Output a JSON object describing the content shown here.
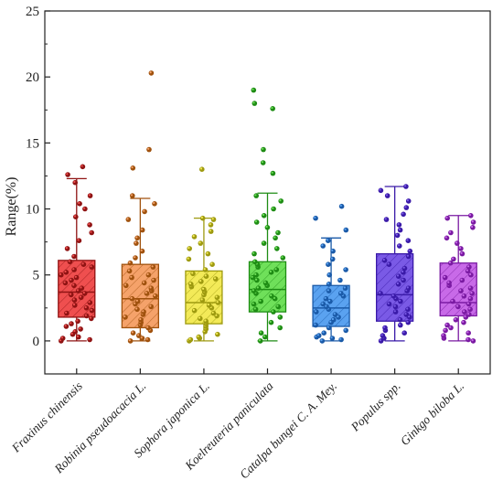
{
  "chart_data": {
    "type": "box",
    "ylabel": "Range(%)",
    "xlabel": "",
    "ylim": [
      -2.5,
      25
    ],
    "yticks": [
      0,
      5,
      10,
      15,
      20,
      25
    ],
    "grid": false,
    "categories": [
      {
        "name": "Fraxinus chinensis",
        "color": "#ef4f4f",
        "dark": "#8f1313",
        "min": 0,
        "q1": 1.8,
        "median": 3.7,
        "q3": 6.1,
        "max": 12.3,
        "points": [
          0.0,
          0.1,
          0.2,
          0.3,
          0.5,
          0.7,
          0.9,
          1.1,
          1.3,
          1.5,
          1.7,
          1.9,
          2.1,
          2.3,
          2.5,
          2.7,
          2.9,
          3.1,
          3.3,
          3.5,
          3.6,
          3.8,
          4.0,
          4.2,
          4.4,
          4.6,
          4.8,
          5.0,
          5.2,
          5.4,
          5.6,
          5.8,
          6.0,
          6.4,
          7.0,
          7.6,
          8.2,
          8.8,
          9.4,
          10.0,
          10.4,
          11.0,
          12.0,
          12.6,
          13.2
        ]
      },
      {
        "name": "Robinia pseudoacacia L.",
        "color": "#f5a26a",
        "dark": "#a0520e",
        "min": 0,
        "q1": 1.0,
        "median": 3.2,
        "q3": 5.8,
        "max": 10.8,
        "points": [
          0.0,
          0.1,
          0.2,
          0.4,
          0.6,
          0.8,
          1.0,
          1.2,
          1.4,
          1.6,
          1.8,
          2.0,
          2.2,
          2.4,
          2.6,
          2.8,
          3.0,
          3.2,
          3.4,
          3.6,
          3.8,
          4.0,
          4.2,
          4.4,
          4.6,
          4.8,
          5.0,
          5.3,
          5.6,
          5.9,
          6.3,
          6.8,
          7.4,
          7.8,
          8.4,
          9.2,
          9.8,
          10.4,
          11.0,
          13.1,
          14.5,
          20.3
        ]
      },
      {
        "name": "Sophora japonica L.",
        "color": "#f3ea58",
        "dark": "#9e9a10",
        "min": 0,
        "q1": 1.3,
        "median": 2.9,
        "q3": 5.3,
        "max": 9.3,
        "points": [
          0.0,
          0.1,
          0.2,
          0.3,
          0.5,
          0.7,
          0.9,
          1.1,
          1.3,
          1.5,
          1.7,
          1.9,
          2.1,
          2.3,
          2.5,
          2.7,
          2.9,
          3.1,
          3.3,
          3.5,
          3.7,
          3.9,
          4.1,
          4.3,
          4.5,
          4.7,
          4.9,
          5.1,
          5.4,
          5.8,
          6.2,
          6.6,
          7.0,
          7.4,
          7.9,
          8.3,
          8.8,
          9.2,
          9.3,
          13.0
        ]
      },
      {
        "name": "Koelreuteria paniculata",
        "color": "#6fe05a",
        "dark": "#1e8c14",
        "min": 0,
        "q1": 2.2,
        "median": 3.9,
        "q3": 6.0,
        "max": 11.2,
        "points": [
          0.0,
          0.3,
          0.6,
          1.0,
          1.4,
          1.8,
          2.2,
          2.4,
          2.6,
          2.8,
          3.0,
          3.2,
          3.4,
          3.6,
          3.8,
          4.0,
          4.2,
          4.4,
          4.6,
          4.8,
          5.0,
          5.2,
          5.4,
          5.6,
          5.8,
          6.0,
          6.3,
          6.6,
          7.0,
          7.4,
          7.8,
          8.2,
          8.6,
          9.0,
          9.5,
          10.0,
          10.6,
          11.0,
          12.7,
          13.5,
          14.5,
          17.6,
          18.0,
          19.0
        ]
      },
      {
        "name": "Catalpa bungei C. A. Mey.",
        "color": "#5aa2f0",
        "dark": "#1a5aa8",
        "min": 0,
        "q1": 1.1,
        "median": 2.5,
        "q3": 4.2,
        "max": 7.8,
        "points": [
          0.0,
          0.1,
          0.2,
          0.3,
          0.4,
          0.6,
          0.8,
          1.0,
          1.2,
          1.4,
          1.6,
          1.8,
          2.0,
          2.2,
          2.4,
          2.6,
          2.8,
          3.0,
          3.2,
          3.4,
          3.6,
          3.8,
          4.0,
          4.3,
          4.6,
          5.0,
          5.4,
          5.8,
          6.2,
          6.8,
          7.2,
          7.6,
          8.4,
          9.3,
          10.2
        ]
      },
      {
        "name": "Populus spp.",
        "color": "#7a5ae6",
        "dark": "#3a1aa8",
        "min": 0,
        "q1": 1.5,
        "median": 3.5,
        "q3": 6.6,
        "max": 11.7,
        "points": [
          0.0,
          0.2,
          0.4,
          0.6,
          0.8,
          1.0,
          1.2,
          1.4,
          1.6,
          1.8,
          2.0,
          2.2,
          2.4,
          2.6,
          2.8,
          3.0,
          3.2,
          3.4,
          3.6,
          3.8,
          4.0,
          4.3,
          4.6,
          4.9,
          5.2,
          5.5,
          5.8,
          6.1,
          6.4,
          6.8,
          7.2,
          7.6,
          8.0,
          8.4,
          8.8,
          9.2,
          9.6,
          10.1,
          10.6,
          11.0,
          11.4,
          11.7
        ]
      },
      {
        "name": "Ginkgo biloba L.",
        "color": "#c86ae8",
        "dark": "#7a1aa2",
        "min": 0,
        "q1": 1.9,
        "median": 2.9,
        "q3": 5.9,
        "max": 9.5,
        "points": [
          0.0,
          0.1,
          0.2,
          0.4,
          0.6,
          0.8,
          1.0,
          1.2,
          1.4,
          1.6,
          1.8,
          2.0,
          2.2,
          2.4,
          2.6,
          2.8,
          3.0,
          3.2,
          3.4,
          3.6,
          3.8,
          4.0,
          4.2,
          4.4,
          4.6,
          4.8,
          5.0,
          5.3,
          5.6,
          5.9,
          6.2,
          6.6,
          7.0,
          7.4,
          7.8,
          8.2,
          8.6,
          9.0,
          9.3,
          9.5
        ]
      }
    ]
  }
}
